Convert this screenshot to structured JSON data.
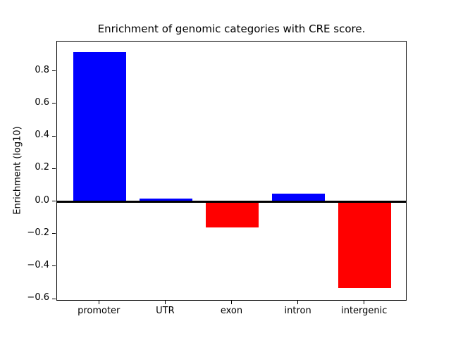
{
  "chart_data": {
    "type": "bar",
    "title": "Enrichment of genomic categories with CRE score.",
    "xlabel": "",
    "ylabel": "Enrichment (log10)",
    "categories": [
      "promoter",
      "UTR",
      "exon",
      "intron",
      "intergenic"
    ],
    "values": [
      0.92,
      0.02,
      -0.16,
      0.05,
      -0.53
    ],
    "bar_colors": [
      "#0000ff",
      "#0000ff",
      "#ff0000",
      "#0000ff",
      "#ff0000"
    ],
    "color_rule": "positive bars blue, negative bars red",
    "positive_color": "#0000ff",
    "negative_color": "#ff0000",
    "ylim": [
      -0.612,
      0.984
    ],
    "yticks": [
      0.8,
      0.6,
      0.4,
      0.2,
      0.0,
      -0.2,
      -0.4,
      -0.6
    ],
    "ytick_labels": [
      "0.8",
      "0.6",
      "0.4",
      "0.2",
      "0.0",
      "−0.2",
      "−0.4",
      "−0.6"
    ],
    "zero_line": true,
    "grid": false,
    "legend": false,
    "background_color": "#ffffff",
    "axis_color": "#000000"
  }
}
